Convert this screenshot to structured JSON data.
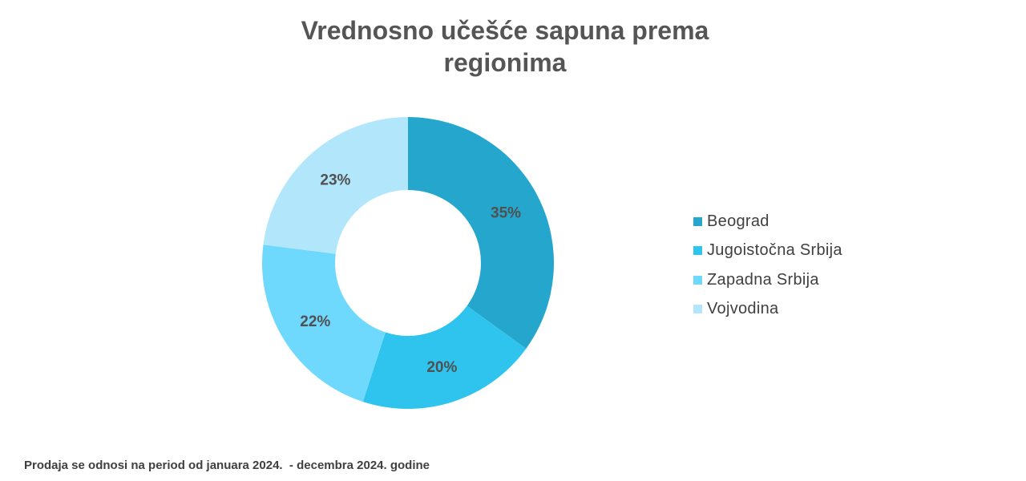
{
  "chart_data": {
    "type": "donut",
    "title_lines": [
      "Vrednosno učešće sapuna prema",
      "regionima"
    ],
    "categories": [
      "Beograd",
      "Jugoistočna Srbija",
      "Zapadna Srbija",
      "Vojvodina"
    ],
    "values": [
      35,
      20,
      22,
      23
    ],
    "data_labels": [
      "35%",
      "20%",
      "22%",
      "23%"
    ],
    "colors": [
      "#25A6CD",
      "#2EC4EE",
      "#6FD8FD",
      "#B2E6FB"
    ],
    "legend_position": "right"
  },
  "footnote": "Prodaja se odnosi na period od januara 2024.  - decembra 2024. godine"
}
